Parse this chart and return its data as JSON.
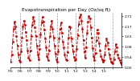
{
  "title": "Evapotranspiration per Day (Oz/sq ft)",
  "values": [
    0.1,
    0.22,
    0.45,
    0.68,
    0.8,
    0.72,
    0.55,
    0.38,
    0.22,
    0.12,
    0.1,
    0.28,
    0.52,
    0.72,
    0.82,
    0.75,
    0.62,
    0.48,
    0.3,
    0.16,
    0.12,
    0.3,
    0.55,
    0.75,
    0.88,
    0.82,
    0.7,
    0.55,
    0.38,
    0.22,
    0.14,
    0.32,
    0.58,
    0.78,
    0.88,
    0.8,
    0.66,
    0.5,
    0.35,
    0.2,
    0.12,
    0.3,
    0.54,
    0.72,
    0.82,
    0.68,
    0.52,
    0.38,
    0.24,
    0.14,
    0.1,
    0.28,
    0.5,
    0.68,
    0.78,
    0.6,
    0.45,
    0.35,
    0.22,
    0.14,
    0.12,
    0.26,
    0.52,
    0.72,
    0.7,
    0.5,
    0.38,
    0.28,
    0.18,
    0.12,
    0.14,
    0.32,
    0.56,
    0.76,
    0.88,
    0.92,
    0.82,
    0.68,
    0.48,
    0.28,
    0.16,
    0.35,
    0.6,
    0.8,
    0.9,
    0.85,
    0.7,
    0.52,
    0.34,
    0.2,
    0.12,
    0.25,
    0.48,
    0.66,
    0.6,
    0.42,
    0.3,
    0.2,
    0.14,
    0.1,
    0.12,
    0.22,
    0.38,
    0.5,
    0.44,
    0.32,
    0.22,
    0.15,
    0.1,
    0.08,
    0.07,
    0.14,
    0.28,
    0.4,
    0.35,
    0.22,
    0.16,
    0.12,
    0.08,
    0.06
  ],
  "x_tick_positions": [
    0,
    10,
    20,
    30,
    40,
    50,
    60,
    70,
    80,
    90,
    100,
    110
  ],
  "x_tick_labels": [
    "'05",
    "'06",
    "'07",
    "'08",
    "'09",
    "'10",
    "'11",
    "'12",
    "'13",
    "'14",
    "'15",
    ""
  ],
  "y_tick_labels": [
    "2.71",
    "2.17",
    "1.63",
    "1.08",
    "0.54",
    "0.00"
  ],
  "y_ticks": [
    0.9,
    0.72,
    0.54,
    0.36,
    0.18,
    0.0
  ],
  "ylim": [
    0.0,
    0.96
  ],
  "line_color": "#cc0000",
  "line_style": "--",
  "line_width": 0.7,
  "marker": "s",
  "marker_size": 0.9,
  "grid_color": "#999999",
  "bg_color": "#ffffff",
  "title_fontsize": 4.2,
  "tick_fontsize": 3.2,
  "vgrid_positions": [
    10,
    30,
    50,
    70,
    90,
    110
  ]
}
